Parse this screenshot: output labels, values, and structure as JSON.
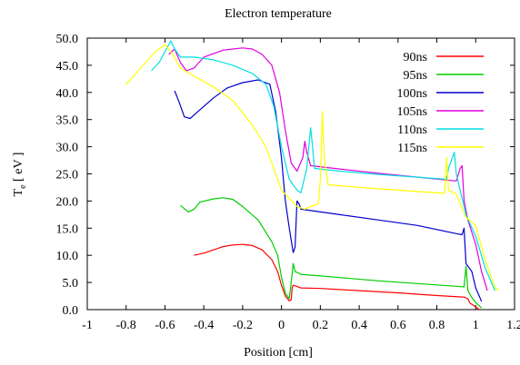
{
  "chart_data": {
    "type": "line",
    "title": "Electron temperature",
    "xlabel": "Position [cm]",
    "ylabel_main": "T",
    "ylabel_sub": "e",
    "ylabel_unit": " [ eV ]",
    "xlim": [
      -1,
      1.2
    ],
    "ylim": [
      0,
      50
    ],
    "x_ticks": [
      "-1",
      "-0.8",
      "-0.6",
      "-0.4",
      "-0.2",
      "0",
      "0.2",
      "0.4",
      "0.6",
      "0.8",
      "1",
      "1.2"
    ],
    "y_ticks": [
      "0.0",
      "5.0",
      "10.0",
      "15.0",
      "20.0",
      "25.0",
      "30.0",
      "35.0",
      "40.0",
      "45.0",
      "50.0"
    ],
    "grid": false,
    "legend_position": "top-right",
    "series": [
      {
        "name": "90ns",
        "color": "#ff0000",
        "points": [
          [
            -0.45,
            10.0
          ],
          [
            -0.4,
            10.4
          ],
          [
            -0.35,
            11.0
          ],
          [
            -0.3,
            11.6
          ],
          [
            -0.25,
            11.9
          ],
          [
            -0.2,
            12.0
          ],
          [
            -0.15,
            11.8
          ],
          [
            -0.1,
            11.0
          ],
          [
            -0.05,
            9.2
          ],
          [
            -0.02,
            7.0
          ],
          [
            0.0,
            4.5
          ],
          [
            0.02,
            2.5
          ],
          [
            0.04,
            1.6
          ],
          [
            0.05,
            1.8
          ],
          [
            0.055,
            4.0
          ],
          [
            0.06,
            4.5
          ],
          [
            0.1,
            4.0
          ],
          [
            0.2,
            3.9
          ],
          [
            0.4,
            3.5
          ],
          [
            0.6,
            3.1
          ],
          [
            0.8,
            2.6
          ],
          [
            0.94,
            2.3
          ],
          [
            0.96,
            2.0
          ],
          [
            0.97,
            1.2
          ],
          [
            1.0,
            0.5
          ],
          [
            1.02,
            0.0
          ]
        ]
      },
      {
        "name": "95ns",
        "color": "#00cc00",
        "points": [
          [
            -0.52,
            19.2
          ],
          [
            -0.48,
            18.0
          ],
          [
            -0.45,
            18.5
          ],
          [
            -0.42,
            19.8
          ],
          [
            -0.35,
            20.4
          ],
          [
            -0.3,
            20.6
          ],
          [
            -0.25,
            20.3
          ],
          [
            -0.2,
            19.0
          ],
          [
            -0.12,
            16.5
          ],
          [
            -0.05,
            12.5
          ],
          [
            -0.02,
            10.0
          ],
          [
            0.0,
            6.0
          ],
          [
            0.02,
            3.0
          ],
          [
            0.04,
            2.0
          ],
          [
            0.05,
            5.0
          ],
          [
            0.06,
            8.5
          ],
          [
            0.07,
            7.0
          ],
          [
            0.1,
            6.5
          ],
          [
            0.3,
            5.9
          ],
          [
            0.5,
            5.3
          ],
          [
            0.7,
            4.8
          ],
          [
            0.9,
            4.3
          ],
          [
            0.94,
            4.2
          ],
          [
            0.95,
            8.0
          ],
          [
            0.96,
            3.5
          ],
          [
            0.98,
            2.2
          ],
          [
            1.0,
            1.3
          ],
          [
            1.03,
            0.3
          ]
        ]
      },
      {
        "name": "100ns",
        "color": "#0000cc",
        "points": [
          [
            -0.55,
            40.3
          ],
          [
            -0.53,
            38.5
          ],
          [
            -0.5,
            35.5
          ],
          [
            -0.47,
            35.2
          ],
          [
            -0.42,
            36.8
          ],
          [
            -0.35,
            39.0
          ],
          [
            -0.28,
            40.8
          ],
          [
            -0.2,
            41.8
          ],
          [
            -0.12,
            42.3
          ],
          [
            -0.06,
            41.5
          ],
          [
            -0.03,
            36.5
          ],
          [
            0.0,
            28.0
          ],
          [
            0.02,
            20.0
          ],
          [
            0.04,
            15.0
          ],
          [
            0.06,
            10.5
          ],
          [
            0.07,
            11.5
          ],
          [
            0.08,
            20.0
          ],
          [
            0.09,
            19.5
          ],
          [
            0.1,
            18.5
          ],
          [
            0.3,
            17.5
          ],
          [
            0.5,
            16.5
          ],
          [
            0.7,
            15.5
          ],
          [
            0.9,
            14.0
          ],
          [
            0.93,
            13.8
          ],
          [
            0.94,
            15.0
          ],
          [
            0.95,
            8.5
          ],
          [
            0.98,
            7.0
          ],
          [
            1.0,
            4.0
          ],
          [
            1.03,
            1.5
          ]
        ]
      },
      {
        "name": "105ns",
        "color": "#e000e0",
        "points": [
          [
            -0.58,
            47.0
          ],
          [
            -0.55,
            48.0
          ],
          [
            -0.52,
            45.5
          ],
          [
            -0.49,
            44.0
          ],
          [
            -0.45,
            44.5
          ],
          [
            -0.4,
            46.5
          ],
          [
            -0.3,
            47.8
          ],
          [
            -0.2,
            48.2
          ],
          [
            -0.15,
            48.0
          ],
          [
            -0.1,
            47.0
          ],
          [
            -0.05,
            45.0
          ],
          [
            -0.01,
            40.0
          ],
          [
            0.02,
            33.0
          ],
          [
            0.05,
            27.0
          ],
          [
            0.08,
            25.5
          ],
          [
            0.11,
            28.0
          ],
          [
            0.12,
            31.0
          ],
          [
            0.13,
            29.0
          ],
          [
            0.15,
            26.5
          ],
          [
            0.3,
            25.9
          ],
          [
            0.5,
            25.1
          ],
          [
            0.7,
            24.4
          ],
          [
            0.9,
            23.7
          ],
          [
            0.92,
            26.0
          ],
          [
            0.93,
            26.5
          ],
          [
            0.94,
            20.0
          ],
          [
            0.96,
            16.5
          ],
          [
            1.0,
            12.0
          ],
          [
            1.03,
            7.0
          ],
          [
            1.06,
            3.5
          ]
        ]
      },
      {
        "name": "110ns",
        "color": "#00e0e0",
        "points": [
          [
            -0.67,
            44.0
          ],
          [
            -0.63,
            45.5
          ],
          [
            -0.6,
            47.5
          ],
          [
            -0.57,
            49.5
          ],
          [
            -0.55,
            48.0
          ],
          [
            -0.52,
            46.5
          ],
          [
            -0.45,
            46.5
          ],
          [
            -0.35,
            46.0
          ],
          [
            -0.25,
            45.0
          ],
          [
            -0.15,
            43.5
          ],
          [
            -0.08,
            41.5
          ],
          [
            -0.04,
            37.5
          ],
          [
            0.0,
            30.0
          ],
          [
            0.04,
            24.0
          ],
          [
            0.08,
            22.0
          ],
          [
            0.1,
            21.5
          ],
          [
            0.13,
            26.0
          ],
          [
            0.15,
            33.5
          ],
          [
            0.16,
            30.0
          ],
          [
            0.17,
            26.0
          ],
          [
            0.3,
            25.5
          ],
          [
            0.5,
            24.9
          ],
          [
            0.7,
            24.4
          ],
          [
            0.85,
            24.0
          ],
          [
            0.86,
            26.0
          ],
          [
            0.88,
            28.0
          ],
          [
            0.89,
            29.0
          ],
          [
            0.9,
            25.0
          ],
          [
            0.95,
            17.5
          ],
          [
            1.0,
            13.5
          ],
          [
            1.05,
            7.5
          ],
          [
            1.1,
            3.5
          ]
        ]
      },
      {
        "name": "115ns",
        "color": "#ffff00",
        "points": [
          [
            -0.8,
            41.5
          ],
          [
            -0.75,
            43.5
          ],
          [
            -0.7,
            45.5
          ],
          [
            -0.65,
            47.5
          ],
          [
            -0.6,
            48.8
          ],
          [
            -0.56,
            47.0
          ],
          [
            -0.52,
            44.5
          ],
          [
            -0.45,
            43.0
          ],
          [
            -0.35,
            41.0
          ],
          [
            -0.25,
            38.5
          ],
          [
            -0.15,
            34.0
          ],
          [
            -0.08,
            30.0
          ],
          [
            -0.04,
            26.0
          ],
          [
            0.0,
            22.0
          ],
          [
            0.04,
            20.5
          ],
          [
            0.08,
            19.0
          ],
          [
            0.12,
            18.5
          ],
          [
            0.15,
            19.0
          ],
          [
            0.19,
            19.5
          ],
          [
            0.2,
            24.0
          ],
          [
            0.21,
            36.5
          ],
          [
            0.22,
            28.0
          ],
          [
            0.24,
            23.0
          ],
          [
            0.4,
            22.5
          ],
          [
            0.6,
            22.0
          ],
          [
            0.8,
            21.5
          ],
          [
            0.84,
            21.4
          ],
          [
            0.85,
            28.0
          ],
          [
            0.86,
            22.0
          ],
          [
            0.9,
            21.3
          ],
          [
            0.95,
            17.0
          ],
          [
            1.0,
            15.5
          ],
          [
            1.05,
            9.0
          ],
          [
            1.1,
            4.0
          ],
          [
            1.12,
            3.5
          ]
        ]
      }
    ]
  }
}
